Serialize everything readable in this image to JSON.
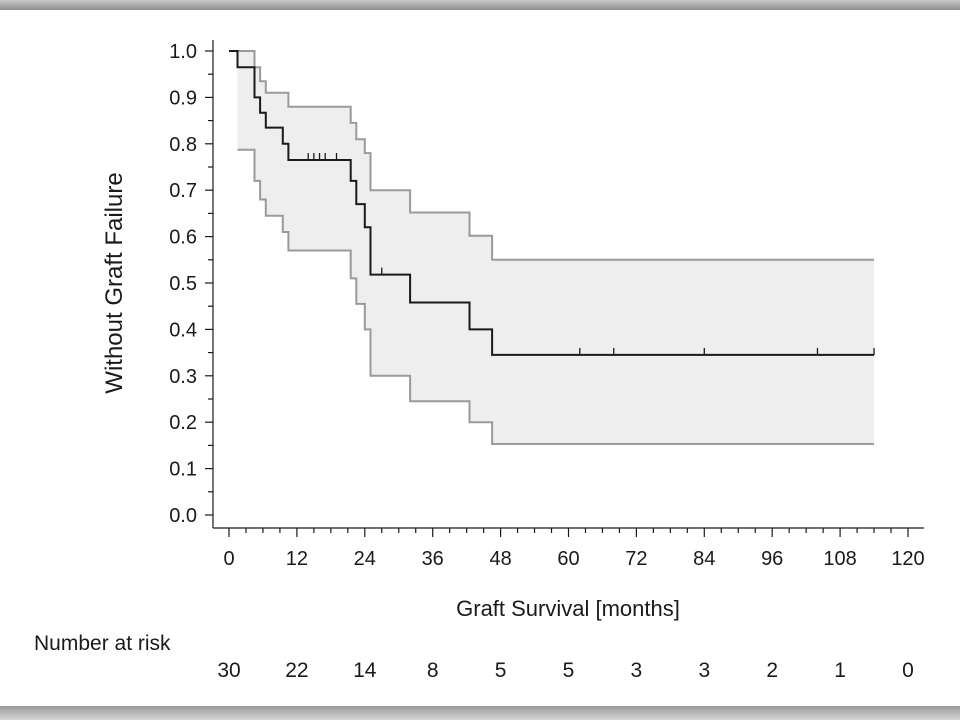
{
  "chart_data": {
    "type": "line",
    "ylabel": "Without Graft Failure",
    "xlabel": "Graft Survival [months]",
    "xlim": [
      0,
      120
    ],
    "ylim": [
      0,
      1
    ],
    "x_ticks": [
      "0",
      "12",
      "24",
      "36",
      "48",
      "60",
      "72",
      "84",
      "96",
      "108",
      "120"
    ],
    "y_ticks": [
      "0.0",
      "0.1",
      "0.2",
      "0.3",
      "0.4",
      "0.5",
      "0.6",
      "0.7",
      "0.8",
      "0.9",
      "1.0"
    ],
    "grid": false,
    "colors": {
      "survival": "#1a1a1a",
      "ci": "#9a9a9a",
      "band": "#eeeeee"
    },
    "series": [
      {
        "role": "estimate",
        "step_points": [
          [
            0,
            1.0
          ],
          [
            1.5,
            1.0
          ],
          [
            1.5,
            0.965
          ],
          [
            4.5,
            0.965
          ],
          [
            4.5,
            0.9
          ],
          [
            5.5,
            0.9
          ],
          [
            5.5,
            0.867
          ],
          [
            6.5,
            0.867
          ],
          [
            6.5,
            0.835
          ],
          [
            9.5,
            0.835
          ],
          [
            9.5,
            0.8
          ],
          [
            10.5,
            0.8
          ],
          [
            10.5,
            0.765
          ],
          [
            21.5,
            0.765
          ],
          [
            21.5,
            0.72
          ],
          [
            22.5,
            0.72
          ],
          [
            22.5,
            0.67
          ],
          [
            24,
            0.67
          ],
          [
            24,
            0.62
          ],
          [
            25,
            0.62
          ],
          [
            25,
            0.518
          ],
          [
            32,
            0.518
          ],
          [
            32,
            0.458
          ],
          [
            42.5,
            0.458
          ],
          [
            42.5,
            0.4
          ],
          [
            46.5,
            0.4
          ],
          [
            46.5,
            0.345
          ],
          [
            114,
            0.345
          ]
        ],
        "censor_x": [
          14,
          15,
          16,
          17,
          19,
          27,
          62,
          68,
          84,
          104,
          114
        ]
      },
      {
        "role": "upper_ci",
        "step_points": [
          [
            1.5,
            1.0
          ],
          [
            4.5,
            1.0
          ],
          [
            4.5,
            0.965
          ],
          [
            5.5,
            0.965
          ],
          [
            5.5,
            0.935
          ],
          [
            6.5,
            0.935
          ],
          [
            6.5,
            0.91
          ],
          [
            10.5,
            0.91
          ],
          [
            10.5,
            0.88
          ],
          [
            21.5,
            0.88
          ],
          [
            21.5,
            0.845
          ],
          [
            22.5,
            0.845
          ],
          [
            22.5,
            0.81
          ],
          [
            24,
            0.81
          ],
          [
            24,
            0.78
          ],
          [
            25,
            0.78
          ],
          [
            25,
            0.7
          ],
          [
            32,
            0.7
          ],
          [
            32,
            0.652
          ],
          [
            42.5,
            0.652
          ],
          [
            42.5,
            0.602
          ],
          [
            46.5,
            0.602
          ],
          [
            46.5,
            0.55
          ],
          [
            114,
            0.55
          ]
        ]
      },
      {
        "role": "lower_ci",
        "step_points": [
          [
            1.5,
            0.787
          ],
          [
            4.5,
            0.787
          ],
          [
            4.5,
            0.72
          ],
          [
            5.5,
            0.72
          ],
          [
            5.5,
            0.68
          ],
          [
            6.5,
            0.68
          ],
          [
            6.5,
            0.645
          ],
          [
            9.5,
            0.645
          ],
          [
            9.5,
            0.61
          ],
          [
            10.5,
            0.61
          ],
          [
            10.5,
            0.57
          ],
          [
            21.5,
            0.57
          ],
          [
            21.5,
            0.51
          ],
          [
            22.5,
            0.51
          ],
          [
            22.5,
            0.455
          ],
          [
            24,
            0.455
          ],
          [
            24,
            0.4
          ],
          [
            25,
            0.4
          ],
          [
            25,
            0.3
          ],
          [
            32,
            0.3
          ],
          [
            32,
            0.245
          ],
          [
            42.5,
            0.245
          ],
          [
            42.5,
            0.2
          ],
          [
            46.5,
            0.2
          ],
          [
            46.5,
            0.153
          ],
          [
            114,
            0.153
          ]
        ]
      }
    ],
    "risk_table": {
      "title": "Number at risk",
      "values": [
        "30",
        "22",
        "14",
        "8",
        "5",
        "5",
        "3",
        "3",
        "2",
        "1",
        "0"
      ]
    }
  }
}
